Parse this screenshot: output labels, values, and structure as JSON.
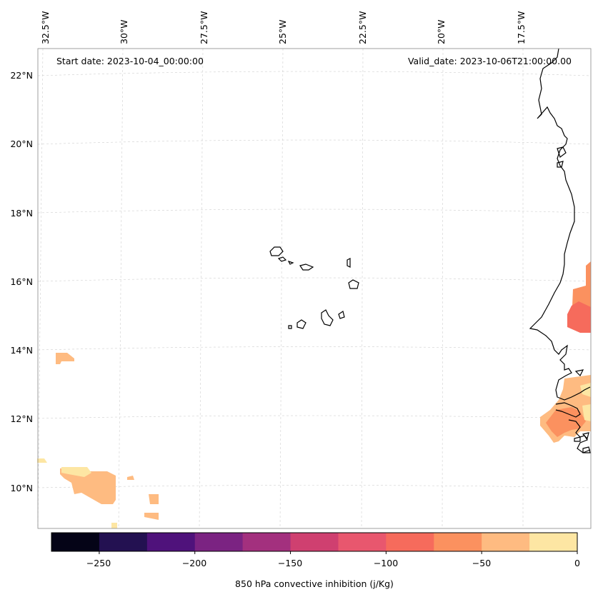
{
  "header": {
    "start_date": "Start date: 2023-10-04_00:00:00",
    "valid_date": "Valid_date: 2023-10-06T21:00:00.00"
  },
  "map": {
    "lon_ticks": [
      "32.5°W",
      "30°W",
      "27.5°W",
      "25°W",
      "22.5°W",
      "20°W",
      "17.5°W"
    ],
    "lat_ticks": [
      "22°N",
      "20°N",
      "18°N",
      "16°N",
      "14°N",
      "12°N",
      "10°N"
    ]
  },
  "colorbar": {
    "label": "850 hPa convective inhibition (j/Kg)",
    "ticks": [
      "−250",
      "−200",
      "−150",
      "−100",
      "−50",
      "0"
    ],
    "colors": [
      "#050417",
      "#231151",
      "#4f127b",
      "#7b2382",
      "#a3307e",
      "#cf4070",
      "#e8576e",
      "#f66b5c",
      "#fb915f",
      "#febb81",
      "#fde6a3"
    ]
  }
}
